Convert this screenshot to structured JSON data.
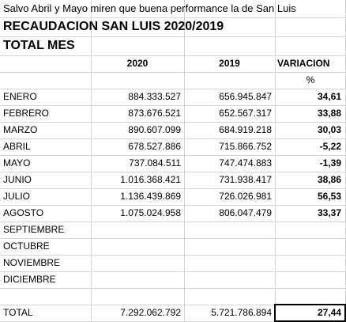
{
  "header": {
    "note": "Salvo Abril y Mayo miren que buena performance la de San Luis",
    "title": "RECAUDACION SAN LUIS  2020/2019",
    "subtitle": "TOTAL MES"
  },
  "table": {
    "columns": [
      "2020",
      "2019",
      "VARIACION"
    ],
    "unit": "%",
    "rows": [
      {
        "label": "ENERO",
        "y2020": "884.333.527",
        "y2019": "656.945.847",
        "variacion": "34,61"
      },
      {
        "label": "FEBRERO",
        "y2020": "873.676.521",
        "y2019": "652.567.317",
        "variacion": "33,88"
      },
      {
        "label": "MARZO",
        "y2020": "890.607.099",
        "y2019": "684.919.218",
        "variacion": "30,03"
      },
      {
        "label": "ABRIL",
        "y2020": "678.527.886",
        "y2019": "715.866.752",
        "variacion": "-5,22"
      },
      {
        "label": "MAYO",
        "y2020": "737.084.511",
        "y2019": "747.474.883",
        "variacion": "-1,39"
      },
      {
        "label": "JUNIO",
        "y2020": "1.016.368.421",
        "y2019": "731.938.417",
        "variacion": "38,86"
      },
      {
        "label": "JULIO",
        "y2020": "1.136.439.869",
        "y2019": "726.026.981",
        "variacion": "56,53"
      },
      {
        "label": "AGOSTO",
        "y2020": "1.075.024.958",
        "y2019": "806.047.479",
        "variacion": "33,37"
      },
      {
        "label": "SEPTIEMBRE"
      },
      {
        "label": "OCTUBRE"
      },
      {
        "label": "NOVIEMBRE"
      },
      {
        "label": "DICIEMBRE"
      }
    ],
    "total": {
      "label": "TOTAL",
      "y2020": "7.292.062.792",
      "y2019": "5.721.786.894",
      "variacion": "27,44"
    }
  }
}
